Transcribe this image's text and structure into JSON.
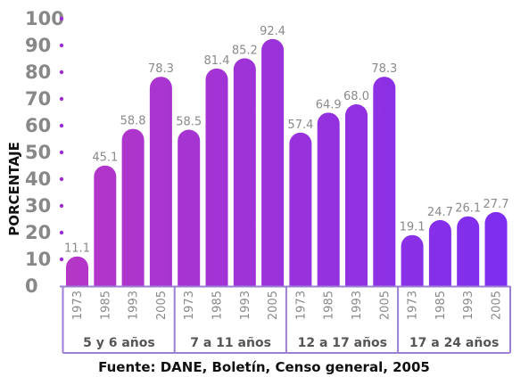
{
  "chart_data": {
    "type": "bar",
    "ylabel": "PORCENTAJE",
    "xlabel": "",
    "ylim": [
      0,
      100
    ],
    "yticks": [
      "0",
      "10",
      "20",
      "30",
      "40",
      "50",
      "60",
      "70",
      "80",
      "90",
      "100"
    ],
    "source": "Fuente: DANE, Boletín, Censo general, 2005",
    "grid": false,
    "groups": [
      {
        "name": "5 y 6 años",
        "categories": [
          "1973",
          "1985",
          "1993",
          "2005"
        ],
        "values": [
          11.1,
          45.1,
          58.8,
          78.3
        ],
        "labels": [
          "11.1",
          "45.1",
          "58.8",
          "78.3"
        ]
      },
      {
        "name": "7 a 11 años",
        "categories": [
          "1973",
          "1985",
          "1993",
          "2005"
        ],
        "values": [
          58.5,
          81.4,
          85.2,
          92.4
        ],
        "labels": [
          "58.5",
          "81.4",
          "85.2",
          "92.4"
        ]
      },
      {
        "name": "12 a 17 años",
        "categories": [
          "1973",
          "1985",
          "1993",
          "2005"
        ],
        "values": [
          57.4,
          64.9,
          68.0,
          78.3
        ],
        "labels": [
          "57.4",
          "64.9",
          "68.0",
          "78.3"
        ]
      },
      {
        "name": "17 a 24 años",
        "categories": [
          "1973",
          "1985",
          "1993",
          "2005"
        ],
        "values": [
          19.1,
          24.7,
          26.1,
          27.7
        ],
        "labels": [
          "19.1",
          "24.7",
          "26.1",
          "27.7"
        ]
      }
    ],
    "colors": {
      "gradient_start": "#b636c6",
      "gradient_end": "#7d2ef0",
      "axis": "#9b7fd4",
      "dot": "#9b2fd0"
    }
  }
}
